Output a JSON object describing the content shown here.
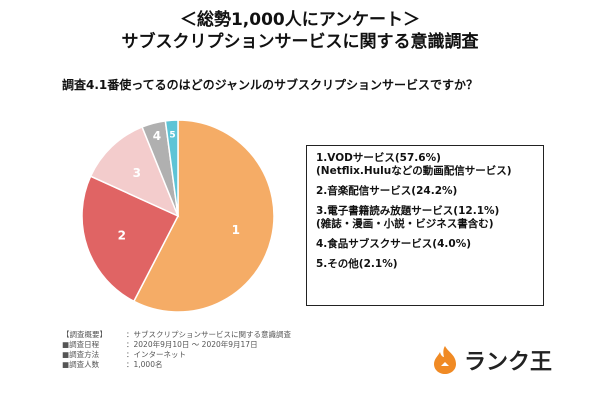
{
  "header": {
    "title_line1": "＜総勢1,000人にアンケート＞",
    "title_line2": "サブスクリプションサービスに関する意識調査"
  },
  "question": "調査4.1番使ってるのはどのジャンルのサブスクリプションサービスですか？",
  "chart_data": {
    "type": "pie",
    "categories": [
      "1",
      "2",
      "3",
      "4",
      "5"
    ],
    "values": [
      57.6,
      24.2,
      12.1,
      4.0,
      2.1
    ],
    "colors": [
      "#f5ac66",
      "#e06464",
      "#f3cccc",
      "#b0b0b0",
      "#5ec4d6"
    ],
    "legend": [
      {
        "label": "1.VODサービス(57.6%)",
        "sub": "(Netflix.Huluなどの動画配信サービス)"
      },
      {
        "label": "2.音楽配信サービス(24.2%)",
        "sub": ""
      },
      {
        "label": "3.電子書籍読み放題サービス(12.1%)",
        "sub": "(雑誌・漫画・小説・ビジネス書含む)"
      },
      {
        "label": "4.食品サブスクサービス(4.0%)",
        "sub": ""
      },
      {
        "label": "5.その他(2.1%)",
        "sub": ""
      }
    ],
    "legend_position": "right"
  },
  "overview": {
    "heading_key": "【調査概要】",
    "heading_val": "：サブスクリプションサービスに関する意識調査",
    "rows": [
      {
        "k": "■調査日程",
        "v": "：2020年9月10日 ～ 2020年9月17日"
      },
      {
        "k": "■調査方法",
        "v": "：インターネット"
      },
      {
        "k": "■調査人数",
        "v": "：1,000名"
      }
    ]
  },
  "brand": {
    "name": "ランク王",
    "icon": "flame-logo-icon",
    "color": "#f08a24"
  }
}
